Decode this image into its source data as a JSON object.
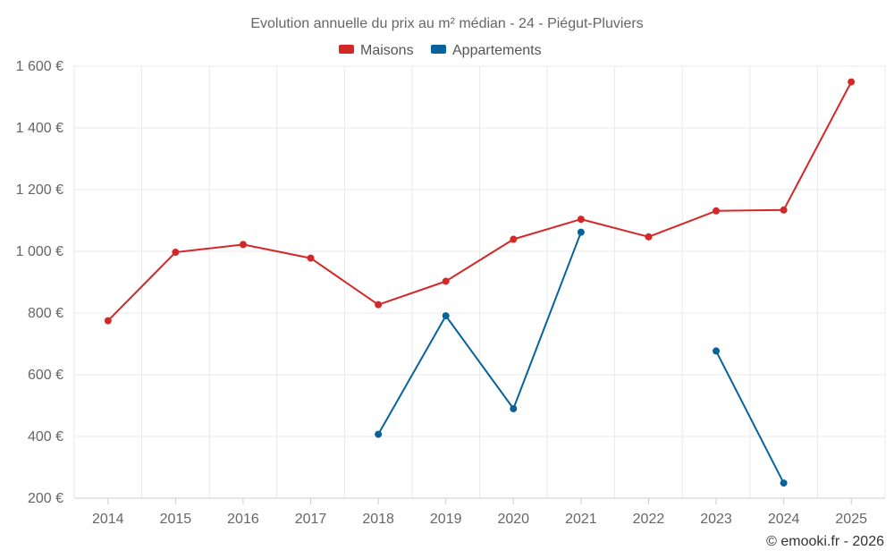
{
  "chart_data": {
    "type": "line",
    "title": "Evolution annuelle du prix au m² médian - 24 - Piégut-Pluviers",
    "categories": [
      "2014",
      "2015",
      "2016",
      "2017",
      "2018",
      "2019",
      "2020",
      "2021",
      "2022",
      "2023",
      "2024",
      "2025"
    ],
    "yTickLabels": [
      "200 €",
      "400 €",
      "600 €",
      "800 €",
      "1 000 €",
      "1 200 €",
      "1 400 €",
      "1 600 €"
    ],
    "yTicks": [
      200,
      400,
      600,
      800,
      1000,
      1200,
      1400,
      1600
    ],
    "ylim": [
      200,
      1600
    ],
    "xlabel": "",
    "ylabel": "",
    "legend_position": "top-center",
    "series": [
      {
        "name": "Maisons",
        "color": "#d62728",
        "values": [
          775,
          997,
          1022,
          978,
          827,
          903,
          1039,
          1104,
          1047,
          1131,
          1134,
          1549
        ]
      },
      {
        "name": "Appartements",
        "color": "#08629b",
        "values": [
          null,
          null,
          null,
          null,
          407,
          791,
          490,
          1062,
          null,
          677,
          249,
          null
        ]
      }
    ],
    "credit": "© emooki.fr - 2026"
  }
}
